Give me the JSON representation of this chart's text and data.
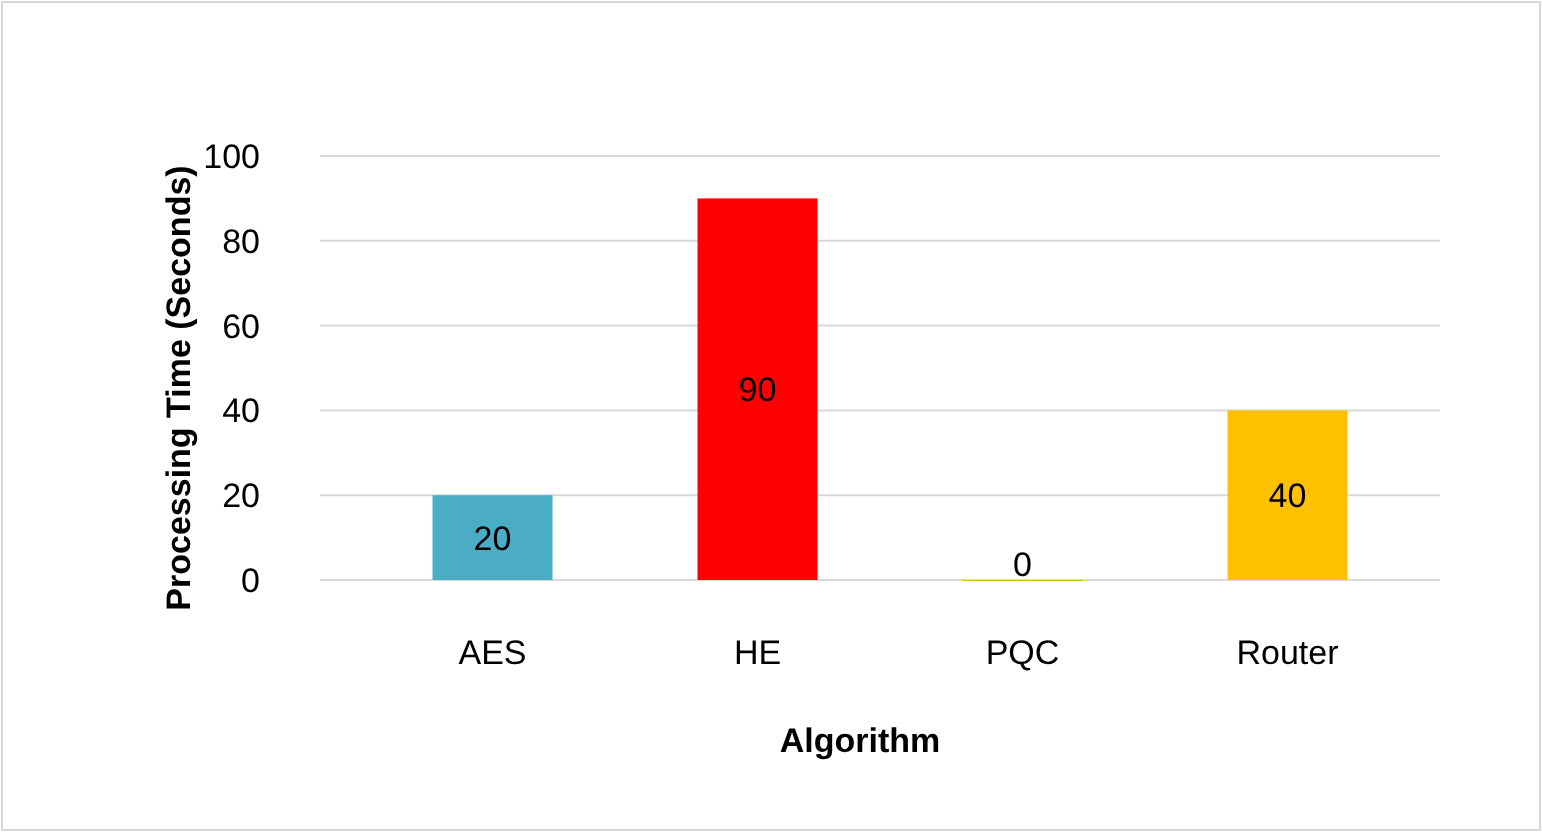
{
  "chart_data": {
    "type": "bar",
    "xlabel": "Algorithm",
    "ylabel": "Processing Time (Seconds)",
    "categories": [
      "AES",
      "HE",
      "PQC",
      "Router"
    ],
    "values": [
      20,
      90,
      0,
      40
    ],
    "colors": [
      "#4bacc6",
      "#ff0000",
      "#c9c900",
      "#ffc000"
    ],
    "data_labels": true,
    "ylim": [
      0,
      100
    ],
    "yticks": [
      0,
      20,
      40,
      60,
      80,
      100
    ],
    "grid": "y"
  }
}
